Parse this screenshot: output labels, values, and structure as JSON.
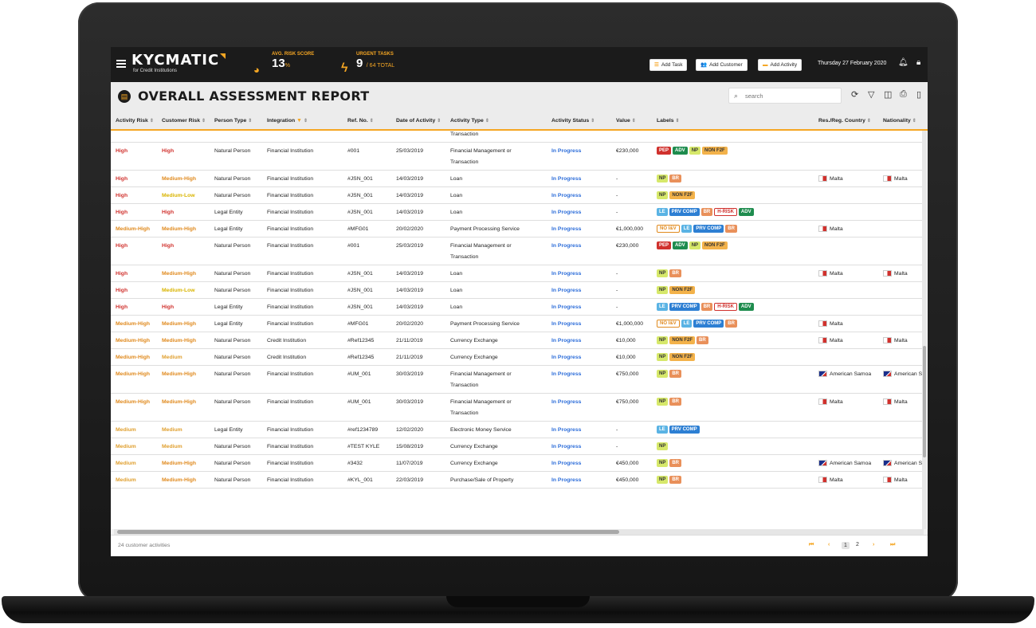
{
  "app": {
    "logo": "KYCMATIC",
    "logo_sub": "for Credit Institutions",
    "avg_risk_label": "AVG. RISK SCORE",
    "avg_risk_value": "13",
    "avg_risk_unit": "%",
    "urgent_label": "URGENT TASKS",
    "urgent_value": "9",
    "urgent_total": "/ 64 TOTAL",
    "add_task": "Add Task",
    "add_customer": "Add Customer",
    "add_activity": "Add Activity",
    "date": "Thursday 27 February 2020"
  },
  "page": {
    "title": "OVERALL ASSESSMENT REPORT",
    "search_placeholder": "search"
  },
  "columns": [
    "Activity Risk",
    "Customer Risk",
    "Person Type",
    "Integration",
    "Ref. No.",
    "Date of Activity",
    "Activity Type",
    "Activity Status",
    "Value",
    "Labels",
    "Res./Reg. Country",
    "Nationality"
  ],
  "partial_row": {
    "activity_type": "Transaction"
  },
  "rows": [
    {
      "ar": "High",
      "cr": "High",
      "pt": "Natural Person",
      "integ": "Financial Institution",
      "ref": "#001",
      "date": "25/03/2019",
      "type1": "Financial Management or",
      "type2": "Transaction",
      "status": "In Progress",
      "value": "€230,000",
      "labels": [
        "PEP",
        "ADV",
        "NP",
        "NON F2F"
      ],
      "country": "",
      "nat": ""
    },
    {
      "ar": "High",
      "cr": "Medium-High",
      "pt": "Natural Person",
      "integ": "Financial Institution",
      "ref": "#JSN_001",
      "date": "14/03/2019",
      "type1": "Loan",
      "type2": "",
      "status": "In Progress",
      "value": "-",
      "labels": [
        "NP",
        "BR"
      ],
      "country": "Malta",
      "nat": "Malta"
    },
    {
      "ar": "High",
      "cr": "Medium-Low",
      "pt": "Natural Person",
      "integ": "Financial Institution",
      "ref": "#JSN_001",
      "date": "14/03/2019",
      "type1": "Loan",
      "type2": "",
      "status": "In Progress",
      "value": "-",
      "labels": [
        "NP",
        "NON F2F"
      ],
      "country": "",
      "nat": ""
    },
    {
      "ar": "High",
      "cr": "High",
      "pt": "Legal Entity",
      "integ": "Financial Institution",
      "ref": "#JSN_001",
      "date": "14/03/2019",
      "type1": "Loan",
      "type2": "",
      "status": "In Progress",
      "value": "-",
      "labels": [
        "LE",
        "PRV COMP",
        "BR",
        "H-RISK",
        "ADV"
      ],
      "country": "",
      "nat": ""
    },
    {
      "ar": "Medium-High",
      "cr": "Medium-High",
      "pt": "Legal Entity",
      "integ": "Financial Institution",
      "ref": "#MFG01",
      "date": "20/02/2020",
      "type1": "Payment Processing Service",
      "type2": "",
      "status": "In Progress",
      "value": "€1,000,000",
      "labels": [
        "NO I&V",
        "LE",
        "PRV COMP",
        "BR"
      ],
      "country": "Malta",
      "nat": ""
    },
    {
      "ar": "High",
      "cr": "High",
      "pt": "Natural Person",
      "integ": "Financial Institution",
      "ref": "#001",
      "date": "25/03/2019",
      "type1": "Financial Management or",
      "type2": "Transaction",
      "status": "In Progress",
      "value": "€230,000",
      "labels": [
        "PEP",
        "ADV",
        "NP",
        "NON F2F"
      ],
      "country": "",
      "nat": ""
    },
    {
      "ar": "High",
      "cr": "Medium-High",
      "pt": "Natural Person",
      "integ": "Financial Institution",
      "ref": "#JSN_001",
      "date": "14/03/2019",
      "type1": "Loan",
      "type2": "",
      "status": "In Progress",
      "value": "-",
      "labels": [
        "NP",
        "BR"
      ],
      "country": "Malta",
      "nat": "Malta"
    },
    {
      "ar": "High",
      "cr": "Medium-Low",
      "pt": "Natural Person",
      "integ": "Financial Institution",
      "ref": "#JSN_001",
      "date": "14/03/2019",
      "type1": "Loan",
      "type2": "",
      "status": "In Progress",
      "value": "-",
      "labels": [
        "NP",
        "NON F2F"
      ],
      "country": "",
      "nat": ""
    },
    {
      "ar": "High",
      "cr": "High",
      "pt": "Legal Entity",
      "integ": "Financial Institution",
      "ref": "#JSN_001",
      "date": "14/03/2019",
      "type1": "Loan",
      "type2": "",
      "status": "In Progress",
      "value": "-",
      "labels": [
        "LE",
        "PRV COMP",
        "BR",
        "H-RISK",
        "ADV"
      ],
      "country": "",
      "nat": ""
    },
    {
      "ar": "Medium-High",
      "cr": "Medium-High",
      "pt": "Legal Entity",
      "integ": "Financial Institution",
      "ref": "#MFG01",
      "date": "20/02/2020",
      "type1": "Payment Processing Service",
      "type2": "",
      "status": "In Progress",
      "value": "€1,000,000",
      "labels": [
        "NO I&V",
        "LE",
        "PRV COMP",
        "BR"
      ],
      "country": "Malta",
      "nat": ""
    },
    {
      "ar": "Medium-High",
      "cr": "Medium-High",
      "pt": "Natural Person",
      "integ": "Credit Institution",
      "ref": "#Ref12345",
      "date": "21/11/2019",
      "type1": "Currency Exchange",
      "type2": "",
      "status": "In Progress",
      "value": "€10,000",
      "labels": [
        "NP",
        "NON F2F",
        "BR"
      ],
      "country": "Malta",
      "nat": "Malta"
    },
    {
      "ar": "Medium-High",
      "cr": "Medium",
      "pt": "Natural Person",
      "integ": "Credit Institution",
      "ref": "#Ref12345",
      "date": "21/11/2019",
      "type1": "Currency Exchange",
      "type2": "",
      "status": "In Progress",
      "value": "€10,000",
      "labels": [
        "NP",
        "NON F2F"
      ],
      "country": "",
      "nat": ""
    },
    {
      "ar": "Medium-High",
      "cr": "Medium-High",
      "pt": "Natural Person",
      "integ": "Financial Institution",
      "ref": "#UM_001",
      "date": "30/03/2019",
      "type1": "Financial Management or",
      "type2": "Transaction",
      "status": "In Progress",
      "value": "€750,000",
      "labels": [
        "NP",
        "BR"
      ],
      "country": "American Samoa",
      "nat": "American S"
    },
    {
      "ar": "Medium-High",
      "cr": "Medium-High",
      "pt": "Natural Person",
      "integ": "Financial Institution",
      "ref": "#UM_001",
      "date": "30/03/2019",
      "type1": "Financial Management or",
      "type2": "Transaction",
      "status": "In Progress",
      "value": "€750,000",
      "labels": [
        "NP",
        "BR"
      ],
      "country": "Malta",
      "nat": "Malta"
    },
    {
      "ar": "Medium",
      "cr": "Medium",
      "pt": "Legal Entity",
      "integ": "Financial Institution",
      "ref": "#ref1234789",
      "date": "12/02/2020",
      "type1": "Electronic Money Service",
      "type2": "",
      "status": "In Progress",
      "value": "-",
      "labels": [
        "LE",
        "PRV COMP"
      ],
      "country": "",
      "nat": ""
    },
    {
      "ar": "Medium",
      "cr": "Medium",
      "pt": "Natural Person",
      "integ": "Financial Institution",
      "ref": "#TEST KYLE",
      "date": "15/08/2019",
      "type1": "Currency Exchange",
      "type2": "",
      "status": "In Progress",
      "value": "-",
      "labels": [
        "NP"
      ],
      "country": "",
      "nat": ""
    },
    {
      "ar": "Medium",
      "cr": "Medium-High",
      "pt": "Natural Person",
      "integ": "Financial Institution",
      "ref": "#3432",
      "date": "11/07/2019",
      "type1": "Currency Exchange",
      "type2": "",
      "status": "In Progress",
      "value": "€450,000",
      "labels": [
        "NP",
        "BR"
      ],
      "country": "American Samoa",
      "nat": "American S"
    },
    {
      "ar": "Medium",
      "cr": "Medium-High",
      "pt": "Natural Person",
      "integ": "Financial Institution",
      "ref": "#KYL_001",
      "date": "22/03/2019",
      "type1": "Purchase/Sale of Property",
      "type2": "",
      "status": "In Progress",
      "value": "€450,000",
      "labels": [
        "NP",
        "BR"
      ],
      "country": "Malta",
      "nat": "Malta"
    }
  ],
  "footer": {
    "count": "24 customer activities",
    "pages": [
      "1",
      "2"
    ]
  }
}
